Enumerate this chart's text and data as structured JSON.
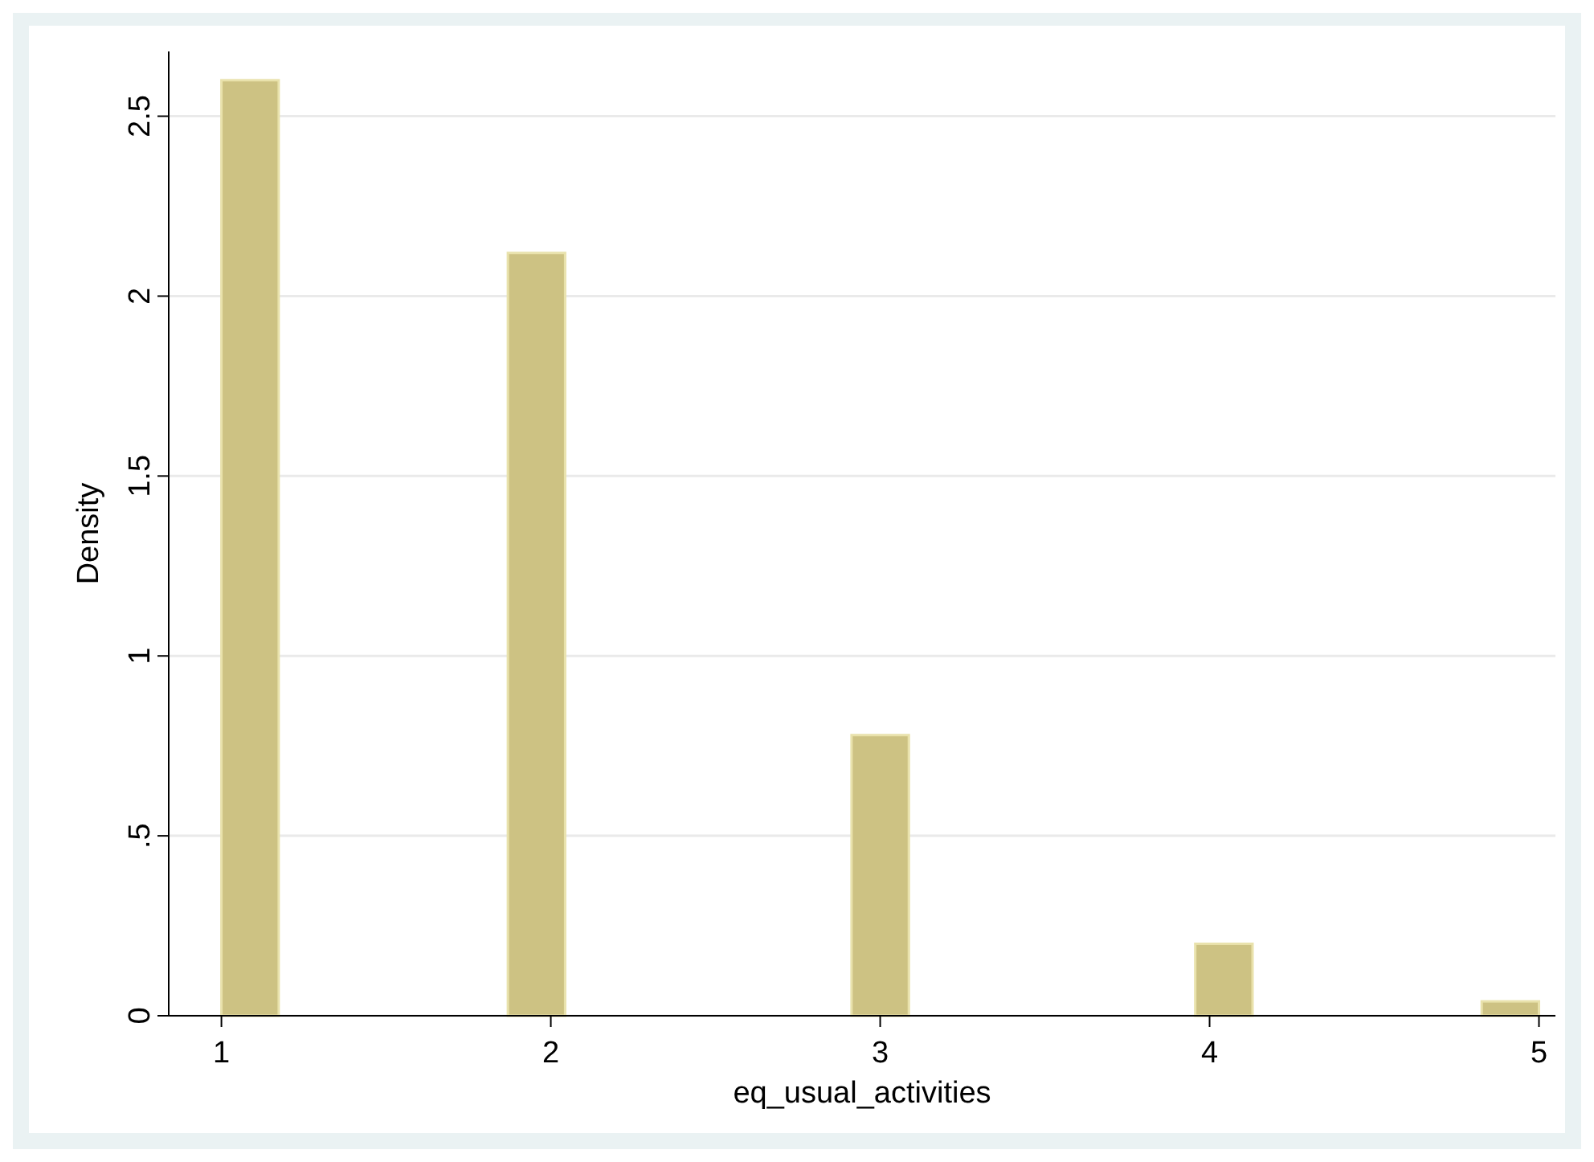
{
  "chart_data": {
    "type": "histogram",
    "xlabel": "eq_usual_activities",
    "ylabel": "Density",
    "bins": [
      1,
      1.1739,
      1.3478,
      1.5217,
      1.6957,
      1.8696,
      2.0435,
      2.2174,
      2.3913,
      2.5652,
      2.7391,
      2.913,
      3.087,
      3.2609,
      3.4348,
      3.6087,
      3.7826,
      3.9565,
      4.1304,
      4.3043,
      4.4783,
      4.6522,
      4.8261,
      5
    ],
    "values": [
      2.6,
      0,
      0,
      0,
      0,
      2.12,
      0,
      0,
      0,
      0,
      0,
      0.78,
      0,
      0,
      0,
      0,
      0,
      0.2,
      0,
      0,
      0,
      0,
      0.04
    ],
    "color": "#cdc283",
    "xlim": [
      0.84,
      5.05
    ],
    "xticks": [
      1,
      2,
      3,
      4,
      5
    ],
    "ylim": [
      0,
      2.68
    ],
    "yticks": [
      0,
      {
        "value": 0.5,
        "label": ".5"
      },
      1,
      1.5,
      2,
      2.5
    ],
    "grid": "y"
  }
}
